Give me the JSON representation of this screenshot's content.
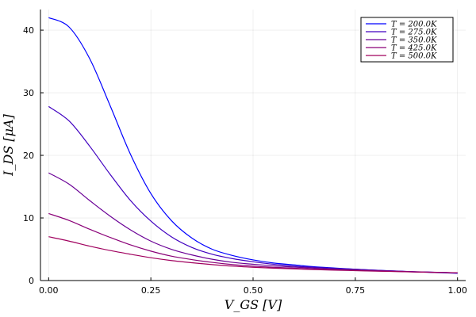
{
  "chart_data": {
    "type": "line",
    "xlabel": "V_GS [V]",
    "ylabel": "I_DS [μA]",
    "xlim": [
      -0.02,
      1.02
    ],
    "ylim": [
      0,
      43.3
    ],
    "xticks": [
      0.0,
      0.25,
      0.5,
      0.75,
      1.0
    ],
    "xtick_labels": [
      "0.00",
      "0.25",
      "0.50",
      "0.75",
      "1.00"
    ],
    "yticks": [
      0,
      10,
      20,
      30,
      40
    ],
    "ytick_labels": [
      "0",
      "10",
      "20",
      "30",
      "40"
    ],
    "grid": true,
    "legend_position": "top-right",
    "series": [
      {
        "name": "T = 200.0K",
        "color": "#0000ff",
        "x": [
          0.0,
          0.05,
          0.1,
          0.15,
          0.2,
          0.25,
          0.3,
          0.35,
          0.4,
          0.45,
          0.5,
          0.55,
          0.6,
          0.65,
          0.7,
          0.75,
          0.8,
          0.85,
          0.9,
          0.95,
          1.0
        ],
        "y": [
          42.0,
          40.5,
          35.5,
          28.0,
          20.2,
          13.9,
          9.6,
          6.8,
          5.0,
          4.0,
          3.3,
          2.8,
          2.5,
          2.2,
          2.0,
          1.8,
          1.65,
          1.5,
          1.38,
          1.27,
          1.15
        ]
      },
      {
        "name": "T = 275.0K",
        "color": "#4000c0",
        "x": [
          0.0,
          0.05,
          0.1,
          0.15,
          0.2,
          0.25,
          0.3,
          0.35,
          0.4,
          0.45,
          0.5,
          0.55,
          0.6,
          0.65,
          0.7,
          0.75,
          0.8,
          0.85,
          0.9,
          0.95,
          1.0
        ],
        "y": [
          27.8,
          25.5,
          21.5,
          17.0,
          12.8,
          9.5,
          7.0,
          5.3,
          4.2,
          3.5,
          3.0,
          2.6,
          2.3,
          2.1,
          1.95,
          1.8,
          1.65,
          1.52,
          1.4,
          1.3,
          1.2
        ]
      },
      {
        "name": "T = 350.0K",
        "color": "#6a0096",
        "x": [
          0.0,
          0.05,
          0.1,
          0.15,
          0.2,
          0.25,
          0.3,
          0.35,
          0.4,
          0.45,
          0.5,
          0.55,
          0.6,
          0.65,
          0.7,
          0.75,
          0.8,
          0.85,
          0.9,
          0.95,
          1.0
        ],
        "y": [
          17.2,
          15.4,
          12.8,
          10.3,
          8.1,
          6.3,
          5.0,
          4.1,
          3.4,
          2.9,
          2.6,
          2.35,
          2.15,
          1.98,
          1.83,
          1.72,
          1.6,
          1.5,
          1.4,
          1.32,
          1.22
        ]
      },
      {
        "name": "T = 425.0K",
        "color": "#8a0077",
        "x": [
          0.0,
          0.05,
          0.1,
          0.15,
          0.2,
          0.25,
          0.3,
          0.35,
          0.4,
          0.45,
          0.5,
          0.55,
          0.6,
          0.65,
          0.7,
          0.75,
          0.8,
          0.85,
          0.9,
          0.95,
          1.0
        ],
        "y": [
          10.7,
          9.6,
          8.2,
          6.9,
          5.7,
          4.7,
          3.9,
          3.35,
          2.9,
          2.55,
          2.3,
          2.12,
          1.97,
          1.83,
          1.72,
          1.62,
          1.53,
          1.45,
          1.37,
          1.3,
          1.22
        ]
      },
      {
        "name": "T = 500.0K",
        "color": "#a0005e",
        "x": [
          0.0,
          0.05,
          0.1,
          0.15,
          0.2,
          0.25,
          0.3,
          0.35,
          0.4,
          0.45,
          0.5,
          0.55,
          0.6,
          0.65,
          0.7,
          0.75,
          0.8,
          0.85,
          0.9,
          0.95,
          1.0
        ],
        "y": [
          7.0,
          6.3,
          5.5,
          4.8,
          4.2,
          3.65,
          3.2,
          2.85,
          2.55,
          2.3,
          2.12,
          1.98,
          1.86,
          1.75,
          1.66,
          1.58,
          1.5,
          1.43,
          1.36,
          1.3,
          1.24
        ]
      }
    ]
  }
}
